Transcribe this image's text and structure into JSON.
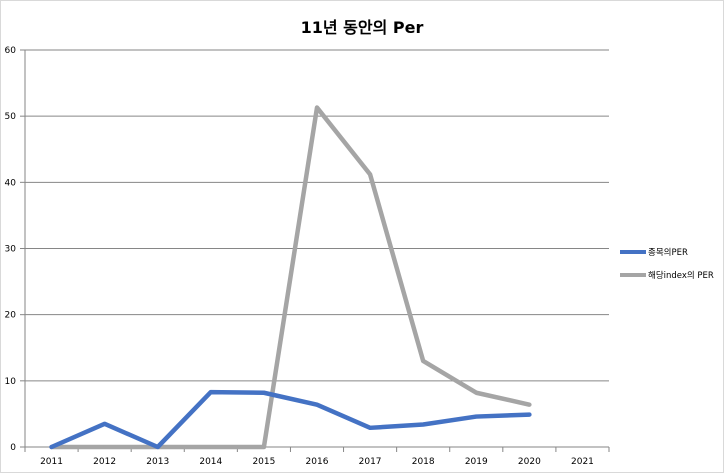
{
  "chart_data": {
    "type": "line",
    "title": "11년 동안의 Per",
    "categories": [
      "2011",
      "2012",
      "2013",
      "2014",
      "2015",
      "2016",
      "2017",
      "2018",
      "2019",
      "2020",
      "2021"
    ],
    "yticks": [
      "0",
      "10",
      "20",
      "30",
      "40",
      "50",
      "60"
    ],
    "ylim": [
      0,
      60
    ],
    "grid": true,
    "legend_position": "right",
    "series": [
      {
        "name": "종목의PER",
        "color": "#4472c4",
        "values": [
          0,
          3.5,
          0,
          8.3,
          8.2,
          6.4,
          2.9,
          3.4,
          4.6,
          4.9,
          null
        ]
      },
      {
        "name": "해당index의 PER",
        "color": "#a5a5a5",
        "values": [
          0,
          0,
          0,
          0,
          0,
          51.3,
          41.2,
          13.0,
          8.2,
          6.4,
          null
        ]
      }
    ]
  }
}
